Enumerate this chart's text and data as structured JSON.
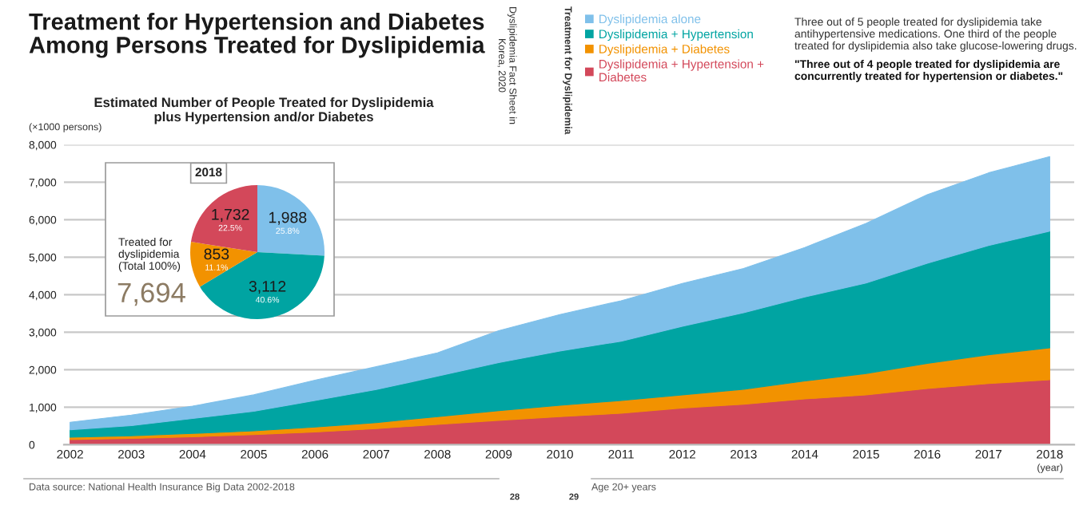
{
  "chart_data": [
    {
      "type": "area",
      "stacked": true,
      "title": "Treatment for Hypertension and Diabetes\nAmong Persons Treated for Dyslipidemia",
      "subtitle": "Estimated Number of People Treated for Dyslipidemia\nplus Hypertension and/or Diabetes",
      "xlabel": "(year)",
      "ylabel": "(×1000 persons)",
      "x": [
        2002,
        2003,
        2004,
        2005,
        2006,
        2007,
        2008,
        2009,
        2010,
        2011,
        2012,
        2013,
        2014,
        2015,
        2016,
        2017,
        2018
      ],
      "xlim": [
        2001.9,
        2018.4
      ],
      "xticks": [
        2002,
        2003,
        2004,
        2005,
        2006,
        2007,
        2008,
        2009,
        2010,
        2011,
        2012,
        2013,
        2014,
        2015,
        2016,
        2017,
        2018
      ],
      "ylim": [
        0,
        8000
      ],
      "yticks": [
        0,
        {
          "value": 1000,
          "label": "1,000"
        },
        {
          "value": 2000,
          "label": "2,000"
        },
        {
          "value": 3000,
          "label": "3,000"
        },
        {
          "value": 4000,
          "label": "4,000"
        },
        {
          "value": 5000,
          "label": "5,000"
        },
        {
          "value": 6000,
          "label": "6,000"
        },
        {
          "value": 7000,
          "label": "7,000"
        },
        {
          "value": 8000,
          "label": "8,000"
        }
      ],
      "grid": "y",
      "legend": "top",
      "series": [
        {
          "name": "Dyslipidemia + Hypertension + Diabetes",
          "color": "#d3485a",
          "values": [
            140,
            170,
            210,
            270,
            340,
            430,
            540,
            650,
            750,
            840,
            980,
            1080,
            1220,
            1330,
            1500,
            1630,
            1732
          ]
        },
        {
          "name": "Dyslipidemia + Diabetes",
          "color": "#f29200",
          "values": [
            60,
            70,
            90,
            100,
            130,
            160,
            210,
            260,
            300,
            340,
            350,
            400,
            480,
            570,
            670,
            770,
            853
          ]
        },
        {
          "name": "Dyslipidemia + Hypertension",
          "color": "#00a4a2",
          "values": [
            200,
            270,
            400,
            520,
            710,
            880,
            1080,
            1280,
            1450,
            1580,
            1830,
            2040,
            2240,
            2410,
            2670,
            2910,
            3112
          ]
        },
        {
          "name": "Dyslipidemia alone",
          "color": "#7fc0ea",
          "values": [
            200,
            280,
            330,
            440,
            540,
            610,
            620,
            850,
            970,
            1080,
            1140,
            1180,
            1320,
            1590,
            1830,
            1940,
            1988
          ]
        }
      ],
      "annotations": [
        "Dyslipidemia Fact Sheet in Korea, 2020",
        "Treatment for Dyslipidemia",
        "Three out of 5 people treated for dyslipidemia take antihypertensive medications. One third of the people treated for dyslipidemia also take glucose-lowering drugs.",
        "\"Three out of 4 people treated for dyslipidemia are concurrently treated for hypertension or diabetes.\"",
        "Data source: National Health Insurance Big Data 2002-2018",
        "Age 20+ years",
        "28",
        "29"
      ]
    },
    {
      "type": "pie",
      "title": "2018",
      "categories": [
        null,
        null,
        null,
        null
      ],
      "values": [
        1988,
        3112,
        853,
        1732
      ],
      "colors": [
        "#7fc0ea",
        "#00a4a2",
        "#f29200",
        "#d3485a"
      ],
      "value_labels": [
        "1,988\n25.8%",
        "3,112\n40.6%",
        "853\n11.1%",
        "1,732\n22.5%"
      ],
      "annotations": [
        "Treated for dyslipidemia (Total 100%)",
        "7,694"
      ]
    }
  ]
}
